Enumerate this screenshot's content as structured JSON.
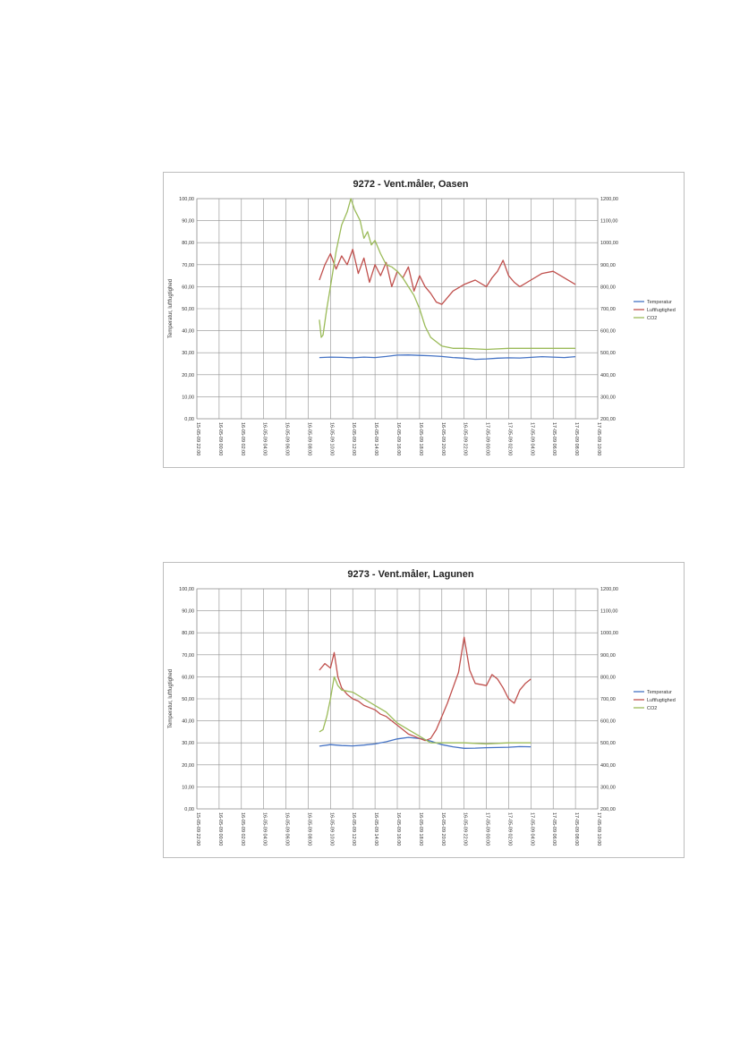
{
  "chart_data": [
    {
      "type": "line",
      "title": "9272 - Vent.måler, Oasen",
      "xlabel": "",
      "ylabel": "Temperatur, luftfugtighed",
      "y2label": "",
      "ylim": [
        0,
        100
      ],
      "y2lim": [
        200,
        1200
      ],
      "y_ticks": [
        "0,00",
        "10,00",
        "20,00",
        "30,00",
        "40,00",
        "50,00",
        "60,00",
        "70,00",
        "80,00",
        "90,00",
        "100,00"
      ],
      "y2_ticks": [
        "200,00",
        "300,00",
        "400,00",
        "500,00",
        "600,00",
        "700,00",
        "800,00",
        "900,00",
        "1000,00",
        "1100,00",
        "1200,00"
      ],
      "x_start": "15-05-09 22:00",
      "x_end": "17-05-09 10:00",
      "x_ticks": [
        "15-05-09 22:00",
        "16-05-09 00:00",
        "16-05-09 02:00",
        "16-05-09 04:00",
        "16-05-09 06:00",
        "16-05-09 08:00",
        "16-05-09 10:00",
        "16-05-09 12:00",
        "16-05-09 14:00",
        "16-05-09 16:00",
        "16-05-09 18:00",
        "16-05-09 20:00",
        "16-05-09 22:00",
        "17-05-09 00:00",
        "17-05-09 02:00",
        "17-05-09 04:00",
        "17-05-09 06:00",
        "17-05-09 08:00",
        "17-05-09 10:00"
      ],
      "grid": true,
      "legend_position": "right",
      "series": [
        {
          "name": "Temperatur",
          "color": "#4472c4",
          "axis": "left",
          "x": [
            "16-05-09 09:00",
            "16-05-09 10:00",
            "16-05-09 11:00",
            "16-05-09 12:00",
            "16-05-09 13:00",
            "16-05-09 14:00",
            "16-05-09 15:00",
            "16-05-09 16:00",
            "16-05-09 17:00",
            "16-05-09 18:00",
            "16-05-09 19:00",
            "16-05-09 20:00",
            "16-05-09 21:00",
            "16-05-09 22:00",
            "16-05-09 23:00",
            "17-05-09 00:00",
            "17-05-09 01:00",
            "17-05-09 02:00",
            "17-05-09 03:00",
            "17-05-09 04:00",
            "17-05-09 05:00",
            "17-05-09 06:00",
            "17-05-09 07:00",
            "17-05-09 08:00"
          ],
          "y": [
            27.8,
            28.0,
            27.9,
            27.7,
            28.0,
            27.8,
            28.3,
            28.9,
            29.0,
            28.8,
            28.6,
            28.3,
            27.8,
            27.5,
            27.0,
            27.2,
            27.5,
            27.7,
            27.6,
            27.9,
            28.2,
            28.0,
            27.8,
            28.2
          ]
        },
        {
          "name": "Luftfugtighed",
          "color": "#c0504d",
          "axis": "left",
          "x": [
            "16-05-09 09:00",
            "16-05-09 09:30",
            "16-05-09 10:00",
            "16-05-09 10:30",
            "16-05-09 11:00",
            "16-05-09 11:30",
            "16-05-09 12:00",
            "16-05-09 12:30",
            "16-05-09 13:00",
            "16-05-09 13:30",
            "16-05-09 14:00",
            "16-05-09 14:30",
            "16-05-09 15:00",
            "16-05-09 15:30",
            "16-05-09 16:00",
            "16-05-09 16:30",
            "16-05-09 17:00",
            "16-05-09 17:30",
            "16-05-09 18:00",
            "16-05-09 18:30",
            "16-05-09 19:00",
            "16-05-09 19:30",
            "16-05-09 20:00",
            "16-05-09 21:00",
            "16-05-09 22:00",
            "16-05-09 23:00",
            "17-05-09 00:00",
            "17-05-09 00:30",
            "17-05-09 01:00",
            "17-05-09 01:30",
            "17-05-09 02:00",
            "17-05-09 02:30",
            "17-05-09 03:00",
            "17-05-09 04:00",
            "17-05-09 05:00",
            "17-05-09 06:00",
            "17-05-09 07:00",
            "17-05-09 08:00"
          ],
          "y": [
            63,
            70,
            75,
            68,
            74,
            70,
            77,
            66,
            73,
            62,
            70,
            65,
            71,
            60,
            67,
            64,
            69,
            58,
            65,
            60,
            57,
            53,
            52,
            58,
            61,
            63,
            60,
            64,
            67,
            72,
            65,
            62,
            60,
            63,
            66,
            67,
            64,
            61
          ]
        },
        {
          "name": "CO2",
          "color": "#9bbb59",
          "axis": "right",
          "x": [
            "16-05-09 09:00",
            "16-05-09 09:10",
            "16-05-09 09:20",
            "16-05-09 09:40",
            "16-05-09 10:00",
            "16-05-09 10:30",
            "16-05-09 11:00",
            "16-05-09 11:30",
            "16-05-09 11:50",
            "16-05-09 12:10",
            "16-05-09 12:40",
            "16-05-09 13:00",
            "16-05-09 13:20",
            "16-05-09 13:40",
            "16-05-09 14:00",
            "16-05-09 14:30",
            "16-05-09 15:00",
            "16-05-09 15:30",
            "16-05-09 16:00",
            "16-05-09 16:30",
            "16-05-09 17:00",
            "16-05-09 17:30",
            "16-05-09 18:00",
            "16-05-09 18:30",
            "16-05-09 19:00",
            "16-05-09 20:00",
            "16-05-09 21:00",
            "16-05-09 22:00",
            "17-05-09 00:00",
            "17-05-09 02:00",
            "17-05-09 04:00",
            "17-05-09 06:00",
            "17-05-09 08:00"
          ],
          "y": [
            650,
            570,
            580,
            700,
            800,
            960,
            1080,
            1140,
            1200,
            1150,
            1100,
            1020,
            1050,
            990,
            1010,
            950,
            900,
            890,
            870,
            840,
            800,
            760,
            700,
            620,
            570,
            530,
            520,
            520,
            515,
            520,
            520,
            520,
            520
          ]
        }
      ]
    },
    {
      "type": "line",
      "title": "9273 - Vent.måler, Lagunen",
      "xlabel": "",
      "ylabel": "Temperatur, luftfugtighed",
      "y2label": "",
      "ylim": [
        0,
        100
      ],
      "y2lim": [
        200,
        1200
      ],
      "y_ticks": [
        "0,00",
        "10,00",
        "20,00",
        "30,00",
        "40,00",
        "50,00",
        "60,00",
        "70,00",
        "80,00",
        "90,00",
        "100,00"
      ],
      "y2_ticks": [
        "200,00",
        "300,00",
        "400,00",
        "500,00",
        "600,00",
        "700,00",
        "800,00",
        "900,00",
        "1000,00",
        "1100,00",
        "1200,00"
      ],
      "x_start": "15-05-09 22:00",
      "x_end": "17-05-09 10:00",
      "x_ticks": [
        "15-05-09 22:00",
        "16-05-09 00:00",
        "16-05-09 02:00",
        "16-05-09 04:00",
        "16-05-09 06:00",
        "16-05-09 08:00",
        "16-05-09 10:00",
        "16-05-09 12:00",
        "16-05-09 14:00",
        "16-05-09 16:00",
        "16-05-09 18:00",
        "16-05-09 20:00",
        "16-05-09 22:00",
        "17-05-09 00:00",
        "17-05-09 02:00",
        "17-05-09 04:00",
        "17-05-09 06:00",
        "17-05-09 08:00",
        "17-05-09 10:00"
      ],
      "grid": true,
      "legend_position": "right",
      "series": [
        {
          "name": "Temperatur",
          "color": "#4472c4",
          "axis": "left",
          "x": [
            "16-05-09 09:00",
            "16-05-09 10:00",
            "16-05-09 11:00",
            "16-05-09 12:00",
            "16-05-09 13:00",
            "16-05-09 14:00",
            "16-05-09 15:00",
            "16-05-09 16:00",
            "16-05-09 17:00",
            "16-05-09 18:00",
            "16-05-09 19:00",
            "16-05-09 20:00",
            "16-05-09 21:00",
            "16-05-09 22:00",
            "16-05-09 23:00",
            "17-05-09 00:00",
            "17-05-09 01:00",
            "17-05-09 02:00",
            "17-05-09 03:00",
            "17-05-09 04:00"
          ],
          "y": [
            28.5,
            29.2,
            28.8,
            28.6,
            29.0,
            29.5,
            30.5,
            31.8,
            32.5,
            32.0,
            30.8,
            29.2,
            28.2,
            27.5,
            27.6,
            27.8,
            27.9,
            28.0,
            28.3,
            28.2
          ]
        },
        {
          "name": "Luftfugtighed",
          "color": "#c0504d",
          "axis": "left",
          "x": [
            "16-05-09 09:00",
            "16-05-09 09:30",
            "16-05-09 10:00",
            "16-05-09 10:20",
            "16-05-09 10:40",
            "16-05-09 11:00",
            "16-05-09 11:30",
            "16-05-09 12:00",
            "16-05-09 12:30",
            "16-05-09 13:00",
            "16-05-09 13:30",
            "16-05-09 14:00",
            "16-05-09 14:30",
            "16-05-09 15:00",
            "16-05-09 15:30",
            "16-05-09 16:00",
            "16-05-09 16:30",
            "16-05-09 17:00",
            "16-05-09 17:30",
            "16-05-09 18:00",
            "16-05-09 18:30",
            "16-05-09 19:00",
            "16-05-09 19:30",
            "16-05-09 20:00",
            "16-05-09 20:30",
            "16-05-09 21:00",
            "16-05-09 21:30",
            "16-05-09 22:00",
            "16-05-09 22:30",
            "16-05-09 23:00",
            "17-05-09 00:00",
            "17-05-09 00:30",
            "17-05-09 01:00",
            "17-05-09 01:30",
            "17-05-09 02:00",
            "17-05-09 02:30",
            "17-05-09 03:00",
            "17-05-09 03:30",
            "17-05-09 04:00"
          ],
          "y": [
            63,
            66,
            64,
            71,
            60,
            55,
            52,
            50,
            49,
            47,
            46,
            45,
            43,
            42,
            40,
            38,
            36,
            34,
            33,
            32,
            31,
            32,
            36,
            42,
            48,
            55,
            62,
            78,
            63,
            57,
            56,
            61,
            59,
            55,
            50,
            48,
            54,
            57,
            59
          ]
        },
        {
          "name": "CO2",
          "color": "#9bbb59",
          "axis": "right",
          "x": [
            "16-05-09 09:00",
            "16-05-09 09:20",
            "16-05-09 09:40",
            "16-05-09 10:00",
            "16-05-09 10:20",
            "16-05-09 10:40",
            "16-05-09 11:00",
            "16-05-09 12:00",
            "16-05-09 13:00",
            "16-05-09 14:00",
            "16-05-09 15:00",
            "16-05-09 16:00",
            "16-05-09 17:00",
            "16-05-09 18:00",
            "16-05-09 19:00",
            "16-05-09 20:00",
            "16-05-09 21:00",
            "16-05-09 22:00",
            "17-05-09 00:00",
            "17-05-09 02:00",
            "17-05-09 04:00"
          ],
          "y": [
            550,
            560,
            620,
            700,
            800,
            760,
            740,
            730,
            700,
            670,
            640,
            590,
            560,
            530,
            500,
            500,
            500,
            500,
            495,
            500,
            500
          ]
        }
      ]
    }
  ]
}
